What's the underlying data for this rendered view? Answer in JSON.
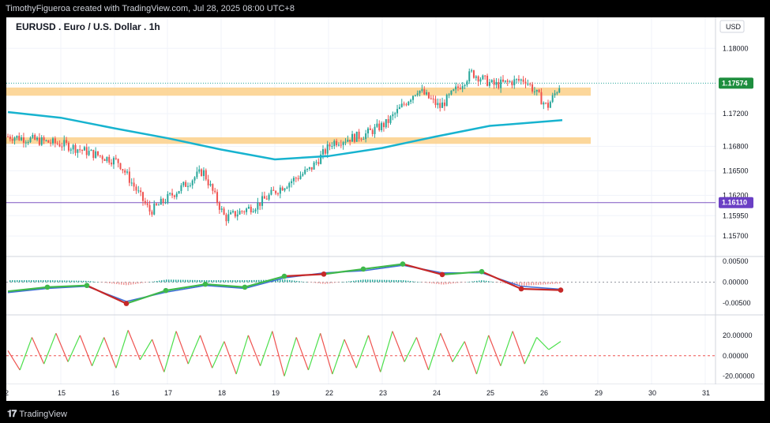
{
  "header": {
    "credit": "TimothyFigueroa created with TradingView.com, Jul 28, 2025 08:00 UTC+8"
  },
  "footer": {
    "brand": "TradingView",
    "brand_logo_icon": "tradingview-logo-icon"
  },
  "colors": {
    "background": "#ffffff",
    "up_candle": "#26a69a",
    "down_candle": "#ef5350",
    "ma_line": "#17b3cf",
    "zone": "#fbd08a",
    "last_price_badge": "#1e8e3e",
    "level_line": "#7e57c2",
    "level_badge": "#6a3fc4",
    "macd_fast": "#3fb84b",
    "macd_slow": "#c62828",
    "macd_signal": "#3f6fd8",
    "osc_up": "#4ce04c",
    "osc_down": "#ef5350"
  },
  "chart_data": [
    {
      "type": "line",
      "subtype": "candlestick",
      "title": "EURUSD . Euro / U.S. Dollar . 1h",
      "currency_label": "USD",
      "ylim": [
        1.1545,
        1.1838
      ],
      "y_ticks": [
        "1.18000",
        "1.17200",
        "1.16800",
        "1.16500",
        "1.16200",
        "1.15950",
        "1.15700"
      ],
      "x_ticks": [
        "2",
        "15",
        "16",
        "17",
        "18",
        "19",
        "22",
        "23",
        "24",
        "25",
        "26",
        "29",
        "30",
        "31"
      ],
      "last_price": "1.17574",
      "level_price": "1.16110",
      "zones": [
        {
          "low": 1.1742,
          "high": 1.1752
        },
        {
          "low": 1.1683,
          "high": 1.1691
        }
      ],
      "close_path": [
        [
          "2",
          1.1692
        ],
        [
          "15",
          1.1682
        ],
        [
          "16",
          1.1661
        ],
        [
          "16",
          1.16
        ],
        [
          "17",
          1.162
        ],
        [
          "17",
          1.165
        ],
        [
          "18",
          1.1592
        ],
        [
          "18",
          1.1608
        ],
        [
          "19",
          1.1628
        ],
        [
          "19",
          1.1652
        ],
        [
          "22",
          1.1685
        ],
        [
          "22",
          1.1694
        ],
        [
          "23",
          1.1708
        ],
        [
          "23",
          1.175
        ],
        [
          "24",
          1.1728
        ],
        [
          "24",
          1.177
        ],
        [
          "25",
          1.1755
        ],
        [
          "25",
          1.1762
        ],
        [
          "26",
          1.1728
        ],
        [
          "26",
          1.1757
        ]
      ],
      "moving_average": [
        [
          "2",
          1.1722
        ],
        [
          "15",
          1.1715
        ],
        [
          "16",
          1.1702
        ],
        [
          "17",
          1.169
        ],
        [
          "18",
          1.1676
        ],
        [
          "19",
          1.1664
        ],
        [
          "22",
          1.1668
        ],
        [
          "23",
          1.1678
        ],
        [
          "24",
          1.1692
        ],
        [
          "25",
          1.1705
        ],
        [
          "26",
          1.1712
        ]
      ]
    },
    {
      "type": "line",
      "title": "",
      "y_ticks": [
        "0.00500",
        "0.00000",
        "-0.00500"
      ],
      "ylim": [
        -0.0078,
        0.0061
      ],
      "series": [
        {
          "values": [
            -0.0022,
            -0.0012,
            -0.0008,
            -0.0051,
            -0.002,
            -0.0005,
            -0.0012,
            0.0014,
            0.0019,
            0.0031,
            0.0043,
            0.0018,
            0.0025,
            -0.0016,
            -0.0019
          ]
        },
        {
          "values": [
            -0.0025,
            -0.0015,
            -0.001,
            -0.0046,
            -0.0024,
            -0.0008,
            -0.0015,
            0.001,
            0.0022,
            0.0027,
            0.004,
            0.0022,
            0.0022,
            -0.001,
            -0.0017
          ]
        }
      ]
    },
    {
      "type": "line",
      "title": "",
      "y_ticks": [
        "20.00000",
        "0.00000",
        "-20.00000"
      ],
      "ylim": [
        -28,
        40
      ],
      "series": [
        {
          "values": [
            5,
            -14,
            18,
            -8,
            22,
            -6,
            20,
            -10,
            18,
            -12,
            25,
            -4,
            16,
            -16,
            24,
            -8,
            20,
            -12,
            14,
            -18,
            20,
            -10,
            24,
            -20,
            18,
            -14,
            22,
            -18,
            16,
            -12,
            20,
            -16,
            24,
            -6,
            18,
            -14,
            22,
            -6,
            14,
            -18,
            20,
            -10,
            24,
            -8,
            18,
            6,
            14
          ]
        }
      ]
    }
  ]
}
